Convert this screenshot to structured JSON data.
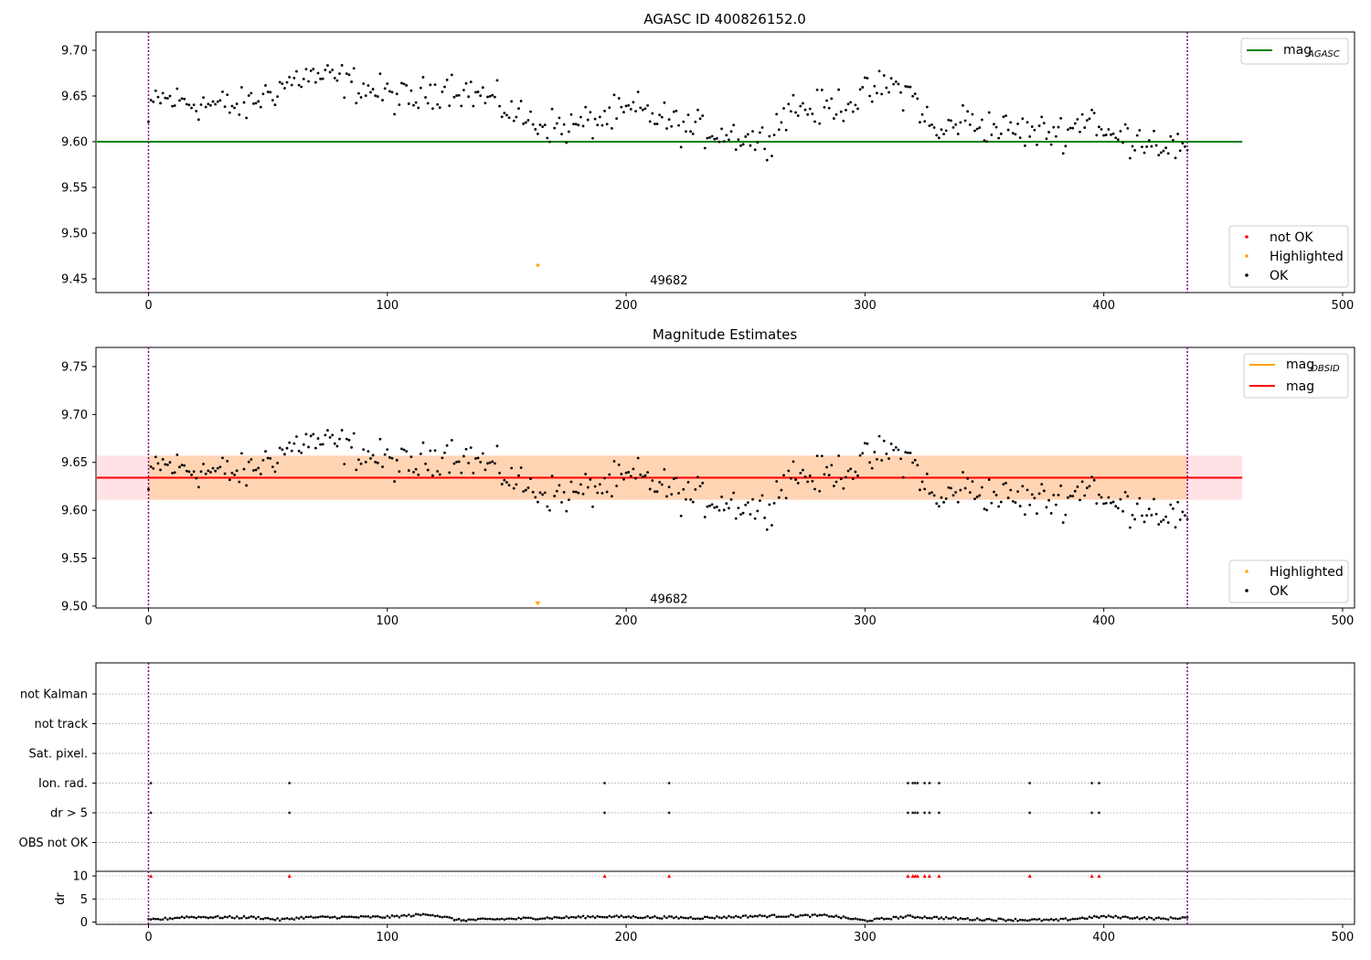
{
  "chart_data": [
    {
      "type": "scatter",
      "title": "AGASC ID 400826152.0",
      "xlim": [
        -22,
        505
      ],
      "ylim": [
        9.435,
        9.72
      ],
      "xticks": [
        0,
        100,
        200,
        300,
        400,
        500
      ],
      "yticks": [
        9.45,
        9.5,
        9.55,
        9.6,
        9.65,
        9.7
      ],
      "ytick_labels": [
        "9.45",
        "9.50",
        "9.55",
        "9.60",
        "9.65",
        "9.70"
      ],
      "vlines": [
        0,
        435
      ],
      "hline": {
        "name_main": "mag",
        "name_sub": "AGASC",
        "y": 9.6,
        "x_end": 458,
        "color": "#008000"
      },
      "highlight_point": {
        "x": 163,
        "y": 9.465,
        "color": "#ffa500"
      },
      "annotation": {
        "text": "49682",
        "x": 210,
        "y": 9.448
      },
      "legend_line": {
        "main": "mag",
        "sub": "AGASC"
      },
      "legend_points": [
        "not OK",
        "Highlighted",
        "OK"
      ],
      "legend_colors": [
        "#ff0000",
        "#ffa500",
        "#000000"
      ],
      "series_shape": {
        "n": 436,
        "knots_x": [
          0,
          3,
          20,
          40,
          55,
          65,
          80,
          95,
          110,
          125,
          140,
          160,
          175,
          190,
          205,
          225,
          245,
          258,
          268,
          280,
          295,
          310,
          320,
          330,
          340,
          355,
          370,
          385,
          395,
          400,
          415,
          425,
          435
        ],
        "knots_y": [
          9.62,
          9.648,
          9.642,
          9.638,
          9.66,
          9.672,
          9.668,
          9.655,
          9.645,
          9.662,
          9.65,
          9.622,
          9.615,
          9.625,
          9.635,
          9.615,
          9.608,
          9.6,
          9.638,
          9.635,
          9.645,
          9.662,
          9.652,
          9.605,
          9.625,
          9.615,
          9.61,
          9.612,
          9.632,
          9.605,
          9.605,
          9.598,
          9.588
        ],
        "noise": 0.0095
      }
    },
    {
      "type": "scatter",
      "title": "Magnitude Estimates",
      "xlim": [
        -22,
        505
      ],
      "ylim": [
        9.498,
        9.77
      ],
      "xticks": [
        0,
        100,
        200,
        300,
        400,
        500
      ],
      "yticks": [
        9.5,
        9.55,
        9.6,
        9.65,
        9.7,
        9.75
      ],
      "ytick_labels": [
        "9.50",
        "9.55",
        "9.60",
        "9.65",
        "9.70",
        "9.75"
      ],
      "vlines": [
        0,
        435
      ],
      "hline": {
        "name": "mag",
        "y": 9.634,
        "x_end": 458,
        "color": "#ff0000"
      },
      "band_outer": {
        "y1": 9.611,
        "y2": 9.657,
        "x_end": 458,
        "color": "#ffb6c1"
      },
      "band_inner": {
        "y1": 9.611,
        "y2": 9.657,
        "x_end": 435,
        "color": "#ffa500"
      },
      "highlight_point": {
        "x": 163,
        "y": 9.502,
        "color": "#ffa500",
        "marker": "triangle-down"
      },
      "annotation": {
        "text": "49682",
        "x": 210,
        "y": 9.507
      },
      "legend_lines": [
        {
          "main": "mag",
          "sub": "OBSID",
          "color": "#ffa500"
        },
        {
          "main": "mag",
          "sub": "",
          "color": "#ff0000"
        }
      ],
      "legend_points": [
        "Highlighted",
        "OK"
      ],
      "legend_colors": [
        "#ffa500",
        "#000000"
      ]
    },
    {
      "type": "scatter",
      "title": "",
      "xlim": [
        -22,
        505
      ],
      "flag_rows": [
        "not Kalman",
        "not track",
        "Sat. pixel.",
        "Ion. rad.",
        "dr > 5",
        "OBS not OK"
      ],
      "vlines": [
        0,
        435
      ],
      "flagged_x": [
        1,
        59,
        191,
        218,
        318,
        320,
        321,
        322,
        325,
        327,
        331,
        369,
        395,
        398
      ],
      "flag_sets": {
        "Ion. rad.": [
          1,
          59,
          191,
          218,
          318,
          320,
          321,
          322,
          325,
          327,
          331,
          369,
          395,
          398
        ],
        "dr > 5": [
          1,
          59,
          191,
          218,
          318,
          320,
          321,
          322,
          325,
          327,
          331,
          369,
          395,
          398
        ]
      }
    },
    {
      "type": "scatter",
      "title": "",
      "ylabel": "dr",
      "xlim": [
        -22,
        505
      ],
      "ylim": [
        -0.5,
        11
      ],
      "xticks": [
        0,
        100,
        200,
        300,
        400,
        500
      ],
      "yticks": [
        0,
        5,
        10
      ],
      "ytick_labels": [
        "0",
        "5",
        "10"
      ],
      "vlines": [
        0,
        435
      ],
      "capped_points": {
        "y": 10,
        "color": "#ff0000",
        "x": [
          1,
          59,
          191,
          218,
          318,
          320,
          321,
          322,
          325,
          327,
          331,
          369,
          395,
          398
        ]
      },
      "dr_shape": {
        "knots_x": [
          0,
          5,
          15,
          45,
          55,
          65,
          100,
          118,
          130,
          190,
          230,
          255,
          285,
          300,
          318,
          345,
          380,
          400,
          425,
          435
        ],
        "knots_y": [
          0.4,
          0.6,
          1.1,
          1.0,
          0.5,
          1.0,
          1.1,
          1.7,
          0.4,
          1.2,
          0.9,
          1.3,
          1.4,
          0.3,
          1.2,
          0.6,
          0.4,
          1.2,
          0.7,
          1.0
        ],
        "noise": 0.25
      }
    }
  ]
}
